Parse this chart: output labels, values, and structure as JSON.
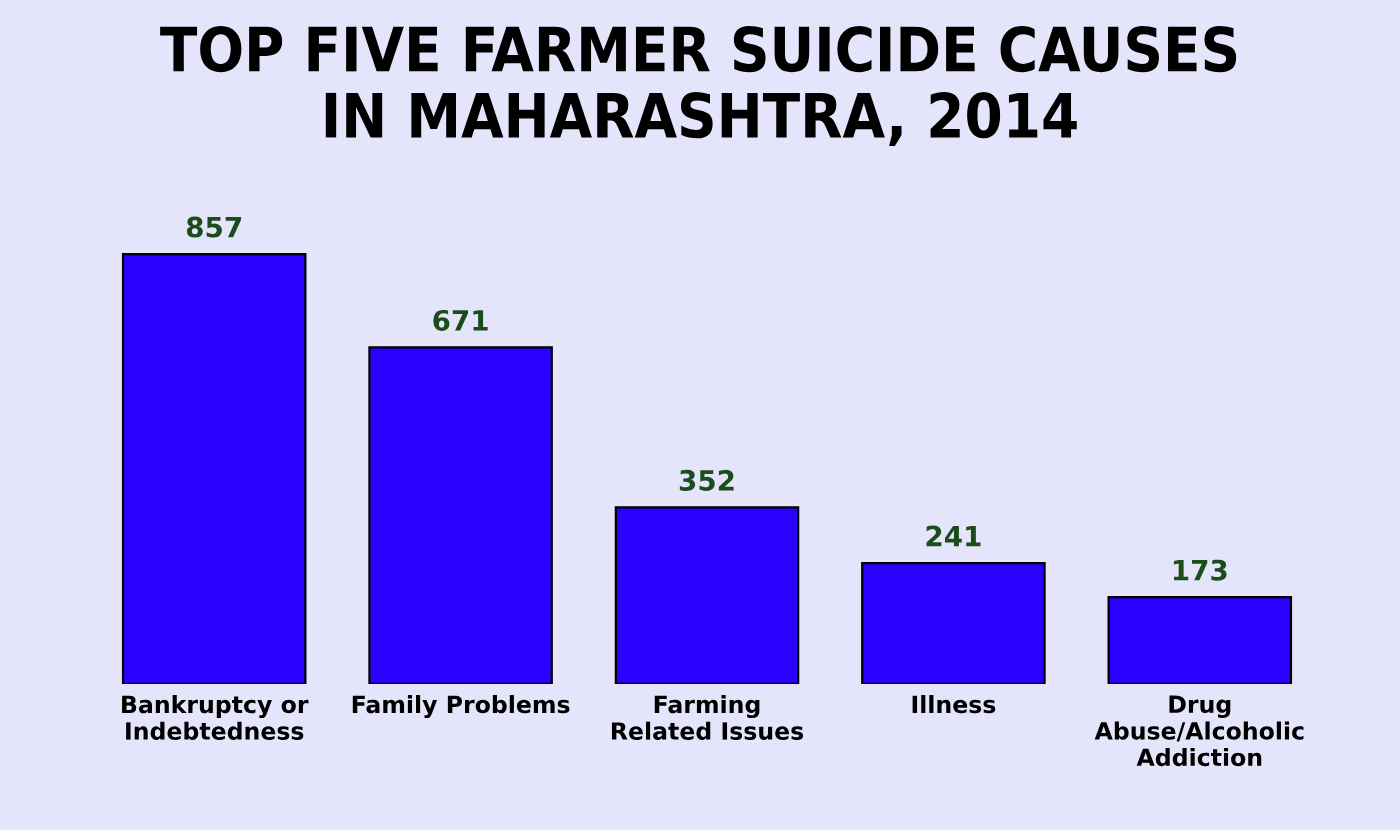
{
  "chart_data": {
    "type": "bar",
    "title": "TOP FIVE FARMER SUICIDE CAUSES\nIN MAHARASHTRA, 2014",
    "categories": [
      "Bankruptcy or\nIndebtedness",
      "Family Problems",
      "Farming\nRelated Issues",
      "Illness",
      "Drug\nAbuse/Alcoholic\nAddiction"
    ],
    "values": [
      857,
      671,
      352,
      241,
      173
    ],
    "color": "#2b00ff",
    "data_labels": true,
    "grid": false,
    "legend": false
  }
}
